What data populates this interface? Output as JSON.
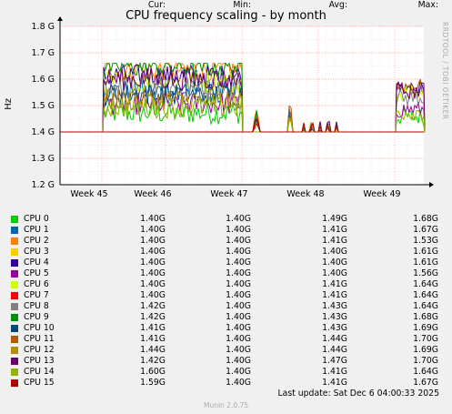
{
  "title": "CPU frequency scaling - by month",
  "side_text": "RRDTOOL / TOBI OETIKER",
  "ylabel": "Hz",
  "legend_headers": {
    "cur": "Cur:",
    "min": "Min:",
    "avg": "Avg:",
    "max": "Max:"
  },
  "last_update": "Last update: Sat Dec  6 04:00:33 2025",
  "footer": "Munin 2.0.75",
  "chart_data": {
    "type": "line",
    "ylabel": "Hz",
    "ylim": [
      1.2,
      1.8
    ],
    "yticks": [
      1.2,
      1.3,
      1.4,
      1.5,
      1.6,
      1.7,
      1.8
    ],
    "ytick_labels": [
      "1.2 G",
      "1.3 G",
      "1.4 G",
      "1.5 G",
      "1.6 G",
      "1.7 G",
      "1.8 G"
    ],
    "x_tick_labels": [
      "Week 45",
      "Week 46",
      "Week 47",
      "Week 48",
      "Week 49"
    ],
    "grid": true,
    "series": [
      {
        "name": "CPU 0",
        "color": "#00cc00",
        "cur": "1.40G",
        "min": "1.40G",
        "avg": "1.49G",
        "max": "1.68G"
      },
      {
        "name": "CPU 1",
        "color": "#0066b3",
        "cur": "1.40G",
        "min": "1.40G",
        "avg": "1.41G",
        "max": "1.67G"
      },
      {
        "name": "CPU 2",
        "color": "#ff8000",
        "cur": "1.40G",
        "min": "1.40G",
        "avg": "1.41G",
        "max": "1.53G"
      },
      {
        "name": "CPU 3",
        "color": "#ffcc00",
        "cur": "1.40G",
        "min": "1.40G",
        "avg": "1.40G",
        "max": "1.61G"
      },
      {
        "name": "CPU 4",
        "color": "#330099",
        "cur": "1.40G",
        "min": "1.40G",
        "avg": "1.40G",
        "max": "1.61G"
      },
      {
        "name": "CPU 5",
        "color": "#990099",
        "cur": "1.40G",
        "min": "1.40G",
        "avg": "1.40G",
        "max": "1.56G"
      },
      {
        "name": "CPU 6",
        "color": "#ccff00",
        "cur": "1.40G",
        "min": "1.40G",
        "avg": "1.41G",
        "max": "1.64G"
      },
      {
        "name": "CPU 7",
        "color": "#ff0000",
        "cur": "1.40G",
        "min": "1.40G",
        "avg": "1.41G",
        "max": "1.64G"
      },
      {
        "name": "CPU 8",
        "color": "#808080",
        "cur": "1.42G",
        "min": "1.40G",
        "avg": "1.43G",
        "max": "1.64G"
      },
      {
        "name": "CPU 9",
        "color": "#008f00",
        "cur": "1.42G",
        "min": "1.40G",
        "avg": "1.43G",
        "max": "1.68G"
      },
      {
        "name": "CPU 10",
        "color": "#00487d",
        "cur": "1.41G",
        "min": "1.40G",
        "avg": "1.43G",
        "max": "1.69G"
      },
      {
        "name": "CPU 11",
        "color": "#b35a00",
        "cur": "1.41G",
        "min": "1.40G",
        "avg": "1.44G",
        "max": "1.70G"
      },
      {
        "name": "CPU 12",
        "color": "#b38f00",
        "cur": "1.44G",
        "min": "1.40G",
        "avg": "1.44G",
        "max": "1.69G"
      },
      {
        "name": "CPU 13",
        "color": "#6b006b",
        "cur": "1.42G",
        "min": "1.40G",
        "avg": "1.47G",
        "max": "1.70G"
      },
      {
        "name": "CPU 14",
        "color": "#8fb300",
        "cur": "1.60G",
        "min": "1.40G",
        "avg": "1.41G",
        "max": "1.64G"
      },
      {
        "name": "CPU 15",
        "color": "#b30000",
        "cur": "1.59G",
        "min": "1.40G",
        "avg": "1.41G",
        "max": "1.67G"
      }
    ]
  }
}
